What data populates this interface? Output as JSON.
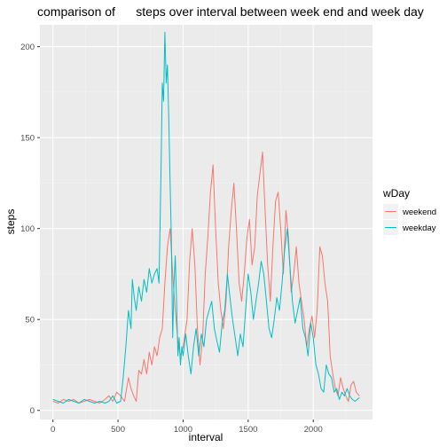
{
  "chart_data": {
    "type": "line",
    "title": "comparison of      steps over interval between week end and week day",
    "xlabel": "interval",
    "ylabel": "steps",
    "xlim": [
      -100,
      2455
    ],
    "ylim": [
      -5,
      212
    ],
    "x_ticks": [
      0,
      500,
      1000,
      1500,
      2000
    ],
    "y_ticks": [
      0,
      50,
      100,
      150,
      200
    ],
    "grid": true,
    "legend": {
      "title": "wDay",
      "position": "right"
    },
    "series": [
      {
        "name": "weekend",
        "color": "#F8766D",
        "points": [
          [
            0,
            5
          ],
          [
            40,
            4
          ],
          [
            80,
            6
          ],
          [
            120,
            5
          ],
          [
            160,
            6
          ],
          [
            200,
            4
          ],
          [
            240,
            5
          ],
          [
            280,
            6
          ],
          [
            320,
            5
          ],
          [
            360,
            4
          ],
          [
            400,
            6
          ],
          [
            430,
            8
          ],
          [
            460,
            5
          ],
          [
            490,
            10
          ],
          [
            520,
            8
          ],
          [
            550,
            5
          ],
          [
            580,
            18
          ],
          [
            600,
            12
          ],
          [
            620,
            8
          ],
          [
            640,
            5
          ],
          [
            660,
            22
          ],
          [
            680,
            20
          ],
          [
            700,
            28
          ],
          [
            720,
            20
          ],
          [
            740,
            32
          ],
          [
            760,
            25
          ],
          [
            780,
            35
          ],
          [
            800,
            30
          ],
          [
            820,
            40
          ],
          [
            840,
            45
          ],
          [
            860,
            70
          ],
          [
            880,
            90
          ],
          [
            900,
            100
          ],
          [
            920,
            75
          ],
          [
            940,
            55
          ],
          [
            960,
            38
          ],
          [
            980,
            30
          ],
          [
            1000,
            35
          ],
          [
            1030,
            50
          ],
          [
            1050,
            82
          ],
          [
            1070,
            100
          ],
          [
            1090,
            80
          ],
          [
            1110,
            45
          ],
          [
            1130,
            25
          ],
          [
            1150,
            40
          ],
          [
            1170,
            75
          ],
          [
            1190,
            95
          ],
          [
            1210,
            120
          ],
          [
            1230,
            135
          ],
          [
            1250,
            100
          ],
          [
            1270,
            70
          ],
          [
            1290,
            55
          ],
          [
            1310,
            45
          ],
          [
            1330,
            60
          ],
          [
            1350,
            90
          ],
          [
            1370,
            110
          ],
          [
            1390,
            125
          ],
          [
            1410,
            100
          ],
          [
            1430,
            70
          ],
          [
            1450,
            60
          ],
          [
            1470,
            75
          ],
          [
            1490,
            95
          ],
          [
            1510,
            105
          ],
          [
            1530,
            80
          ],
          [
            1550,
            90
          ],
          [
            1570,
            118
          ],
          [
            1590,
            130
          ],
          [
            1610,
            142
          ],
          [
            1630,
            110
          ],
          [
            1650,
            80
          ],
          [
            1670,
            60
          ],
          [
            1690,
            90
          ],
          [
            1710,
            115
          ],
          [
            1730,
            120
          ],
          [
            1750,
            100
          ],
          [
            1770,
            75
          ],
          [
            1790,
            110
          ],
          [
            1810,
            95
          ],
          [
            1830,
            65
          ],
          [
            1850,
            75
          ],
          [
            1870,
            90
          ],
          [
            1890,
            70
          ],
          [
            1910,
            60
          ],
          [
            1930,
            50
          ],
          [
            1950,
            35
          ],
          [
            1970,
            45
          ],
          [
            1990,
            52
          ],
          [
            2010,
            40
          ],
          [
            2030,
            55
          ],
          [
            2050,
            90
          ],
          [
            2070,
            85
          ],
          [
            2090,
            70
          ],
          [
            2110,
            60
          ],
          [
            2130,
            30
          ],
          [
            2150,
            20
          ],
          [
            2170,
            12
          ],
          [
            2190,
            8
          ],
          [
            2210,
            18
          ],
          [
            2230,
            12
          ],
          [
            2250,
            8
          ],
          [
            2270,
            5
          ],
          [
            2290,
            14
          ],
          [
            2310,
            16
          ],
          [
            2330,
            10
          ],
          [
            2355,
            8
          ]
        ]
      },
      {
        "name": "weekday",
        "color": "#00BFC4",
        "points": [
          [
            0,
            6
          ],
          [
            40,
            5
          ],
          [
            80,
            4
          ],
          [
            120,
            6
          ],
          [
            160,
            5
          ],
          [
            200,
            4
          ],
          [
            240,
            6
          ],
          [
            280,
            5
          ],
          [
            320,
            4
          ],
          [
            360,
            5
          ],
          [
            400,
            4
          ],
          [
            430,
            5
          ],
          [
            460,
            8
          ],
          [
            490,
            4
          ],
          [
            520,
            5
          ],
          [
            540,
            18
          ],
          [
            560,
            35
          ],
          [
            580,
            55
          ],
          [
            600,
            45
          ],
          [
            610,
            72
          ],
          [
            625,
            62
          ],
          [
            640,
            55
          ],
          [
            660,
            68
          ],
          [
            680,
            60
          ],
          [
            700,
            72
          ],
          [
            720,
            65
          ],
          [
            740,
            78
          ],
          [
            760,
            70
          ],
          [
            780,
            75
          ],
          [
            800,
            78
          ],
          [
            815,
            70
          ],
          [
            830,
            130
          ],
          [
            840,
            180
          ],
          [
            850,
            170
          ],
          [
            860,
            208
          ],
          [
            870,
            180
          ],
          [
            880,
            190
          ],
          [
            890,
            160
          ],
          [
            900,
            125
          ],
          [
            910,
            95
          ],
          [
            920,
            40
          ],
          [
            930,
            70
          ],
          [
            940,
            85
          ],
          [
            950,
            60
          ],
          [
            960,
            30
          ],
          [
            970,
            40
          ],
          [
            980,
            25
          ],
          [
            990,
            35
          ],
          [
            1000,
            30
          ],
          [
            1020,
            42
          ],
          [
            1040,
            30
          ],
          [
            1060,
            20
          ],
          [
            1080,
            35
          ],
          [
            1100,
            45
          ],
          [
            1120,
            30
          ],
          [
            1140,
            42
          ],
          [
            1160,
            35
          ],
          [
            1180,
            50
          ],
          [
            1200,
            55
          ],
          [
            1220,
            60
          ],
          [
            1240,
            45
          ],
          [
            1260,
            38
          ],
          [
            1280,
            32
          ],
          [
            1300,
            48
          ],
          [
            1320,
            55
          ],
          [
            1340,
            75
          ],
          [
            1360,
            62
          ],
          [
            1380,
            50
          ],
          [
            1400,
            40
          ],
          [
            1420,
            30
          ],
          [
            1440,
            42
          ],
          [
            1460,
            35
          ],
          [
            1480,
            55
          ],
          [
            1500,
            75
          ],
          [
            1520,
            65
          ],
          [
            1540,
            50
          ],
          [
            1560,
            60
          ],
          [
            1580,
            70
          ],
          [
            1600,
            82
          ],
          [
            1620,
            75
          ],
          [
            1640,
            60
          ],
          [
            1660,
            45
          ],
          [
            1680,
            40
          ],
          [
            1700,
            50
          ],
          [
            1720,
            62
          ],
          [
            1740,
            55
          ],
          [
            1760,
            70
          ],
          [
            1780,
            88
          ],
          [
            1800,
            100
          ],
          [
            1820,
            80
          ],
          [
            1840,
            60
          ],
          [
            1860,
            48
          ],
          [
            1880,
            55
          ],
          [
            1900,
            62
          ],
          [
            1920,
            45
          ],
          [
            1940,
            40
          ],
          [
            1960,
            30
          ],
          [
            1980,
            48
          ],
          [
            2000,
            40
          ],
          [
            2020,
            25
          ],
          [
            2040,
            20
          ],
          [
            2060,
            12
          ],
          [
            2080,
            10
          ],
          [
            2100,
            25
          ],
          [
            2120,
            20
          ],
          [
            2140,
            18
          ],
          [
            2160,
            10
          ],
          [
            2180,
            12
          ],
          [
            2200,
            6
          ],
          [
            2220,
            10
          ],
          [
            2240,
            8
          ],
          [
            2260,
            12
          ],
          [
            2280,
            8
          ],
          [
            2300,
            6
          ],
          [
            2320,
            5
          ],
          [
            2355,
            7
          ]
        ]
      }
    ]
  }
}
